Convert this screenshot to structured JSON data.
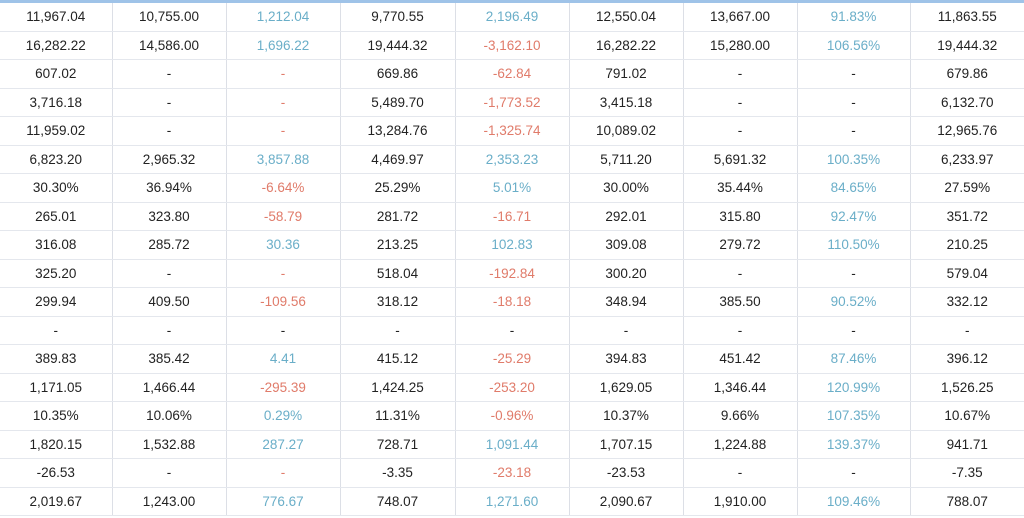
{
  "table": {
    "rows": [
      [
        "11,967.04",
        "10,755.00",
        "1,212.04",
        "9,770.55",
        "2,196.49",
        "12,550.04",
        "13,667.00",
        "91.83%",
        "11,863.55"
      ],
      [
        "16,282.22",
        "14,586.00",
        "1,696.22",
        "19,444.32",
        "-3,162.10",
        "16,282.22",
        "15,280.00",
        "106.56%",
        "19,444.32"
      ],
      [
        "607.02",
        "-",
        "-",
        "669.86",
        "-62.84",
        "791.02",
        "-",
        "-",
        "679.86"
      ],
      [
        "3,716.18",
        "-",
        "-",
        "5,489.70",
        "-1,773.52",
        "3,415.18",
        "-",
        "-",
        "6,132.70"
      ],
      [
        "11,959.02",
        "-",
        "-",
        "13,284.76",
        "-1,325.74",
        "10,089.02",
        "-",
        "-",
        "12,965.76"
      ],
      [
        "6,823.20",
        "2,965.32",
        "3,857.88",
        "4,469.97",
        "2,353.23",
        "5,711.20",
        "5,691.32",
        "100.35%",
        "6,233.97"
      ],
      [
        "30.30%",
        "36.94%",
        "-6.64%",
        "25.29%",
        "5.01%",
        "30.00%",
        "35.44%",
        "84.65%",
        "27.59%"
      ],
      [
        "265.01",
        "323.80",
        "-58.79",
        "281.72",
        "-16.71",
        "292.01",
        "315.80",
        "92.47%",
        "351.72"
      ],
      [
        "316.08",
        "285.72",
        "30.36",
        "213.25",
        "102.83",
        "309.08",
        "279.72",
        "110.50%",
        "210.25"
      ],
      [
        "325.20",
        "-",
        "-",
        "518.04",
        "-192.84",
        "300.20",
        "-",
        "-",
        "579.04"
      ],
      [
        "299.94",
        "409.50",
        "-109.56",
        "318.12",
        "-18.18",
        "348.94",
        "385.50",
        "90.52%",
        "332.12"
      ],
      [
        "-",
        "-",
        "-",
        "-",
        "-",
        "-",
        "-",
        "-",
        "-"
      ],
      [
        "389.83",
        "385.42",
        "4.41",
        "415.12",
        "-25.29",
        "394.83",
        "451.42",
        "87.46%",
        "396.12"
      ],
      [
        "1,171.05",
        "1,466.44",
        "-295.39",
        "1,424.25",
        "-253.20",
        "1,629.05",
        "1,346.44",
        "120.99%",
        "1,526.25"
      ],
      [
        "10.35%",
        "10.06%",
        "0.29%",
        "11.31%",
        "-0.96%",
        "10.37%",
        "9.66%",
        "107.35%",
        "10.67%"
      ],
      [
        "1,820.15",
        "1,532.88",
        "287.27",
        "728.71",
        "1,091.44",
        "1,707.15",
        "1,224.88",
        "139.37%",
        "941.71"
      ],
      [
        "-26.53",
        "-",
        "-",
        "-3.35",
        "-23.18",
        "-23.53",
        "-",
        "-",
        "-7.35"
      ],
      [
        "2,019.67",
        "1,243.00",
        "776.67",
        "748.07",
        "1,271.60",
        "2,090.67",
        "1,910.00",
        "109.46%",
        "788.07"
      ]
    ]
  },
  "colors": {
    "positive": "#6aaec8",
    "negative": "#e07b6a",
    "text": "#222222",
    "border": "#dcdfe6",
    "header_accent": "#9fc3e8"
  }
}
